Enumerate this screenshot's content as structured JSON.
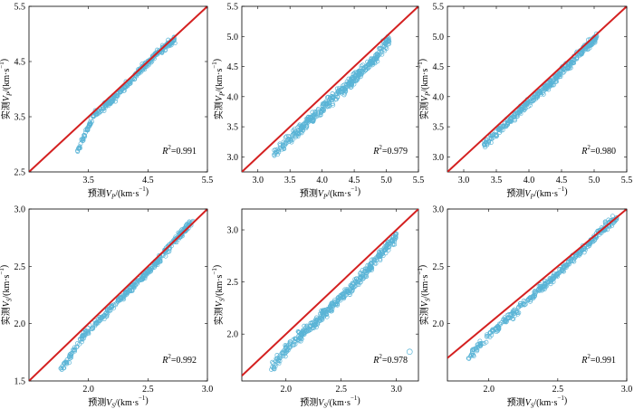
{
  "colors": {
    "points": "#5ab4d6",
    "reference_line": "#d42020",
    "frame": "#000000"
  },
  "chart_data": [
    {
      "type": "scatter",
      "xlabel": {
        "prefix": "预测",
        "var": "V",
        "sub": "P",
        "unit": "/(km·s",
        "exp": "−1",
        "close": ")"
      },
      "ylabel": {
        "prefix": "实测",
        "var": "V",
        "sub": "P",
        "unit": "/(km·s",
        "exp": "−1",
        "close": ")"
      },
      "xlim": [
        2.5,
        5.5
      ],
      "ylim": [
        2.5,
        5.5
      ],
      "xticks": [
        "3.5",
        "4.5",
        "5.5"
      ],
      "yticks": [
        "2.5",
        "3.5",
        "4.5",
        "5.5"
      ],
      "r2": "0.991",
      "reference_line": [
        [
          2.5,
          2.5
        ],
        [
          5.5,
          5.5
        ]
      ],
      "trend": [
        [
          3.3,
          2.85
        ],
        [
          3.45,
          3.2
        ],
        [
          3.6,
          3.55
        ],
        [
          3.9,
          3.8
        ],
        [
          4.2,
          4.15
        ],
        [
          4.6,
          4.6
        ],
        [
          4.95,
          4.9
        ]
      ],
      "spread": 0.06,
      "n_points": 320
    },
    {
      "type": "scatter",
      "xlabel": {
        "prefix": "预测",
        "var": "V",
        "sub": "P",
        "unit": "/(km·s",
        "exp": "−1",
        "close": ")"
      },
      "ylabel": {
        "prefix": "实测",
        "var": "V",
        "sub": "P",
        "unit": "/(km·s",
        "exp": "−1",
        "close": ")"
      },
      "xlim": [
        2.75,
        5.5
      ],
      "ylim": [
        2.75,
        5.5
      ],
      "xticks": [
        "3.0",
        "3.5",
        "4.0",
        "4.5",
        "5.0",
        "5.5"
      ],
      "yticks": [
        "3.0",
        "3.5",
        "4.0",
        "4.5",
        "5.0",
        "5.5"
      ],
      "r2": "0.979",
      "reference_line": [
        [
          2.75,
          2.75
        ],
        [
          5.5,
          5.5
        ]
      ],
      "trend": [
        [
          3.25,
          3.05
        ],
        [
          3.6,
          3.4
        ],
        [
          4.0,
          3.8
        ],
        [
          4.5,
          4.3
        ],
        [
          4.8,
          4.6
        ],
        [
          5.05,
          4.95
        ]
      ],
      "spread": 0.09,
      "n_points": 420
    },
    {
      "type": "scatter",
      "xlabel": {
        "prefix": "预测",
        "var": "V",
        "sub": "P",
        "unit": "/(km·s",
        "exp": "−1",
        "close": ")"
      },
      "ylabel": {
        "prefix": "实测",
        "var": "V",
        "sub": "P",
        "unit": "/(km·s",
        "exp": "−1",
        "close": ")"
      },
      "xlim": [
        2.75,
        5.5
      ],
      "ylim": [
        2.75,
        5.5
      ],
      "xticks": [
        "3.0",
        "3.5",
        "4.0",
        "4.5",
        "5.0",
        "5.5"
      ],
      "yticks": [
        "3.0",
        "3.5",
        "4.0",
        "4.5",
        "5.0",
        "5.5"
      ],
      "r2": "0.980",
      "reference_line": [
        [
          2.75,
          2.75
        ],
        [
          5.5,
          5.5
        ]
      ],
      "trend": [
        [
          3.3,
          3.2
        ],
        [
          3.6,
          3.5
        ],
        [
          4.0,
          3.9
        ],
        [
          4.5,
          4.4
        ],
        [
          4.9,
          4.85
        ],
        [
          5.05,
          5.0
        ]
      ],
      "spread": 0.07,
      "n_points": 400
    },
    {
      "type": "scatter",
      "xlabel": {
        "prefix": "预测",
        "var": "V",
        "sub": "S",
        "unit": "/(km·s",
        "exp": "−1",
        "close": ")"
      },
      "ylabel": {
        "prefix": "实测",
        "var": "V",
        "sub": "S",
        "unit": "/(km·s",
        "exp": "−1",
        "close": ")"
      },
      "xlim": [
        1.5,
        3.0
      ],
      "ylim": [
        1.5,
        3.0
      ],
      "xticks": [
        "2.0",
        "2.5",
        "3.0"
      ],
      "yticks": [
        "1.5",
        "2.0",
        "2.5",
        "3.0"
      ],
      "r2": "0.992",
      "reference_line": [
        [
          1.5,
          1.5
        ],
        [
          3.0,
          3.0
        ]
      ],
      "trend": [
        [
          1.75,
          1.57
        ],
        [
          1.85,
          1.72
        ],
        [
          1.95,
          1.88
        ],
        [
          2.2,
          2.15
        ],
        [
          2.5,
          2.45
        ],
        [
          2.75,
          2.75
        ],
        [
          2.88,
          2.9
        ]
      ],
      "spread": 0.03,
      "n_points": 380
    },
    {
      "type": "scatter",
      "xlabel": {
        "prefix": "预测",
        "var": "V",
        "sub": "S",
        "unit": "/(km·s",
        "exp": "−1",
        "close": ")"
      },
      "ylabel": {
        "prefix": "实测",
        "var": "V",
        "sub": "S",
        "unit": "/(km·s",
        "exp": "−1",
        "close": ")"
      },
      "xlim": [
        1.6,
        3.2
      ],
      "ylim": [
        1.55,
        3.2
      ],
      "xticks": [
        "2.0",
        "2.5",
        "3.0"
      ],
      "yticks": [
        "2.0",
        "2.5",
        "3.0"
      ],
      "r2": "0.978",
      "reference_line": [
        [
          1.6,
          1.6
        ],
        [
          3.2,
          3.2
        ]
      ],
      "trend": [
        [
          1.85,
          1.65
        ],
        [
          2.0,
          1.85
        ],
        [
          2.3,
          2.15
        ],
        [
          2.6,
          2.45
        ],
        [
          2.85,
          2.75
        ],
        [
          3.0,
          2.95
        ]
      ],
      "spread": 0.05,
      "n_points": 420,
      "outlier": [
        3.12,
        1.83
      ]
    },
    {
      "type": "scatter",
      "xlabel": {
        "prefix": "预测",
        "var": "V",
        "sub": "S",
        "unit": "/(km·s",
        "exp": "−1",
        "close": ")"
      },
      "ylabel": {
        "prefix": "实测",
        "var": "V",
        "sub": "S",
        "unit": "/(km·s",
        "exp": "−1",
        "close": ")"
      },
      "xlim": [
        1.7,
        3.0
      ],
      "ylim": [
        1.5,
        3.0
      ],
      "xticks": [
        "2.0",
        "2.5",
        "3.0"
      ],
      "yticks": [
        "2.0",
        "2.5",
        "3.0"
      ],
      "r2": "0.991",
      "reference_line": [
        [
          1.7,
          1.7
        ],
        [
          3.0,
          3.0
        ]
      ],
      "trend": [
        [
          1.85,
          1.7
        ],
        [
          2.0,
          1.9
        ],
        [
          2.3,
          2.22
        ],
        [
          2.6,
          2.55
        ],
        [
          2.85,
          2.85
        ],
        [
          2.92,
          2.92
        ]
      ],
      "spread": 0.035,
      "n_points": 380
    }
  ]
}
